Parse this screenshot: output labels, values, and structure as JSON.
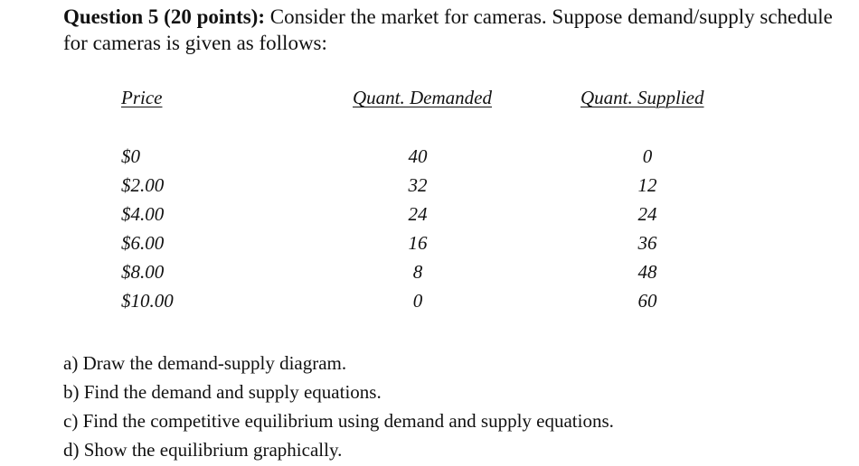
{
  "question": {
    "heading": "Question 5 (20 points):",
    "text": " Consider the market for cameras. Suppose demand/supply schedule for cameras is given as follows:"
  },
  "table": {
    "headers": {
      "price": "Price",
      "qd": "Quant. Demanded",
      "qs": "Quant. Supplied"
    },
    "rows": [
      {
        "price": "$0",
        "qd": "40",
        "qs": "0"
      },
      {
        "price": "$2.00",
        "qd": "32",
        "qs": "12"
      },
      {
        "price": "$4.00",
        "qd": "24",
        "qs": "24"
      },
      {
        "price": "$6.00",
        "qd": "16",
        "qs": "36"
      },
      {
        "price": "$8.00",
        "qd": "8",
        "qs": "48"
      },
      {
        "price": "$10.00",
        "qd": "0",
        "qs": "60"
      }
    ]
  },
  "tasks": [
    "a) Draw the demand-supply diagram.",
    "b) Find the demand and supply equations.",
    "c) Find the competitive equilibrium using demand and supply equations.",
    "d) Show the equilibrium graphically."
  ]
}
